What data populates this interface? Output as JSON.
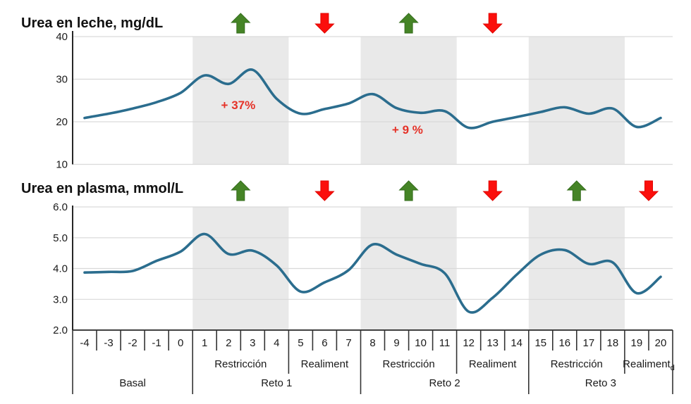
{
  "titles": {
    "milk": "Urea en leche, mg/dL",
    "plasma": "Urea en plasma, mmol/L"
  },
  "colors": {
    "line": "#2b6d8e",
    "band": "#e9e9e9",
    "grid": "#d9d9d9",
    "axis": "#262626",
    "divider": "#333333",
    "text": "#1a1a1a",
    "green_arrow": "#458426",
    "green_arrow_border": "#356d1d",
    "red_arrow": "#fb0f0c",
    "red_arrow_border": "#e00500",
    "annotation": "#e53228"
  },
  "x_axis": {
    "tick_labels": [
      "-4",
      "-3",
      "-2",
      "-1",
      "0",
      "1",
      "2",
      "3",
      "4",
      "5",
      "6",
      "7",
      "8",
      "9",
      "10",
      "11",
      "12",
      "13",
      "14",
      "15",
      "16",
      "17",
      "18",
      "19",
      "20"
    ],
    "periods": [
      {
        "label": "Restricción",
        "from": 0.5,
        "to": 4.5
      },
      {
        "label": "Realiment",
        "from": 4.5,
        "to": 7.5
      },
      {
        "label": "Restricción",
        "from": 7.5,
        "to": 11.5
      },
      {
        "label": "Realiment",
        "from": 11.5,
        "to": 14.5
      },
      {
        "label": "Restricción",
        "from": 14.5,
        "to": 18.5
      },
      {
        "label": "Realiment",
        "sub": "d",
        "from": 18.5,
        "to": 20.5
      }
    ],
    "groups": [
      {
        "label": "Basal",
        "from": -4.5,
        "to": 0.5
      },
      {
        "label": "Reto 1",
        "from": 0.5,
        "to": 7.5
      },
      {
        "label": "Reto 2",
        "from": 7.5,
        "to": 14.5
      },
      {
        "label": "Reto 3",
        "from": 14.5,
        "to": 20.5
      }
    ],
    "restriction_bands": [
      [
        0.5,
        4.5
      ],
      [
        7.5,
        11.5
      ],
      [
        14.5,
        18.5
      ]
    ]
  },
  "chart_data": [
    {
      "type": "line",
      "title": "Urea en leche, mg/dL",
      "ylabel": "Urea en leche (mg/dL)",
      "x": [
        -4,
        -3,
        -2,
        -1,
        0,
        1,
        2,
        3,
        4,
        5,
        6,
        7,
        8,
        9,
        10,
        11,
        12,
        13,
        14,
        15,
        16,
        17,
        18,
        19,
        20
      ],
      "values": [
        20.9,
        21.9,
        23.1,
        24.6,
        26.8,
        30.9,
        28.9,
        32.2,
        25.4,
        21.9,
        23.0,
        24.3,
        26.5,
        23.2,
        22.1,
        22.5,
        18.6,
        20.0,
        21.1,
        22.3,
        23.4,
        21.9,
        23.1,
        18.8,
        20.9
      ],
      "ylim": [
        10,
        40
      ],
      "yticks": [
        {
          "label": "40",
          "value": 40
        },
        {
          "label": "30",
          "value": 30
        },
        {
          "label": "20",
          "value": 20
        },
        {
          "label": "10",
          "value": 10
        }
      ],
      "grid_values": [
        40,
        30,
        20,
        10
      ],
      "annotations": [
        {
          "text": "+ 37%",
          "x": 2.4,
          "y": 24.0
        },
        {
          "text": "+ 9 %",
          "x": 9.45,
          "y": 18.2
        }
      ],
      "arrows": [
        {
          "x": 2.5,
          "dir": "up"
        },
        {
          "x": 6,
          "dir": "down"
        },
        {
          "x": 9.5,
          "dir": "up"
        },
        {
          "x": 13,
          "dir": "down"
        }
      ]
    },
    {
      "type": "line",
      "title": "Urea en plasma, mmol/L",
      "ylabel": "Urea en plasma (mmol/L)",
      "x": [
        -4,
        -3,
        -2,
        -1,
        0,
        1,
        2,
        3,
        4,
        5,
        6,
        7,
        8,
        9,
        10,
        11,
        12,
        13,
        14,
        15,
        16,
        17,
        18,
        19,
        20
      ],
      "values": [
        3.87,
        3.89,
        3.92,
        4.25,
        4.55,
        5.12,
        4.47,
        4.58,
        4.1,
        3.25,
        3.55,
        3.95,
        4.78,
        4.45,
        4.15,
        3.85,
        2.6,
        3.05,
        3.8,
        4.45,
        4.6,
        4.15,
        4.2,
        3.2,
        3.73
      ],
      "ylim": [
        2,
        6
      ],
      "yticks": [
        {
          "label": "6.0",
          "value": 6
        },
        {
          "label": "5.0",
          "value": 5
        },
        {
          "label": "4.0",
          "value": 4
        },
        {
          "label": "3.0",
          "value": 3
        },
        {
          "label": "2.0",
          "value": 2
        }
      ],
      "grid_values": [
        6,
        5,
        4,
        3
      ],
      "annotations": [],
      "arrows": [
        {
          "x": 2.5,
          "dir": "up"
        },
        {
          "x": 6,
          "dir": "down"
        },
        {
          "x": 9.5,
          "dir": "up"
        },
        {
          "x": 13,
          "dir": "down"
        },
        {
          "x": 16.5,
          "dir": "up"
        },
        {
          "x": 19.5,
          "dir": "down"
        }
      ]
    }
  ]
}
